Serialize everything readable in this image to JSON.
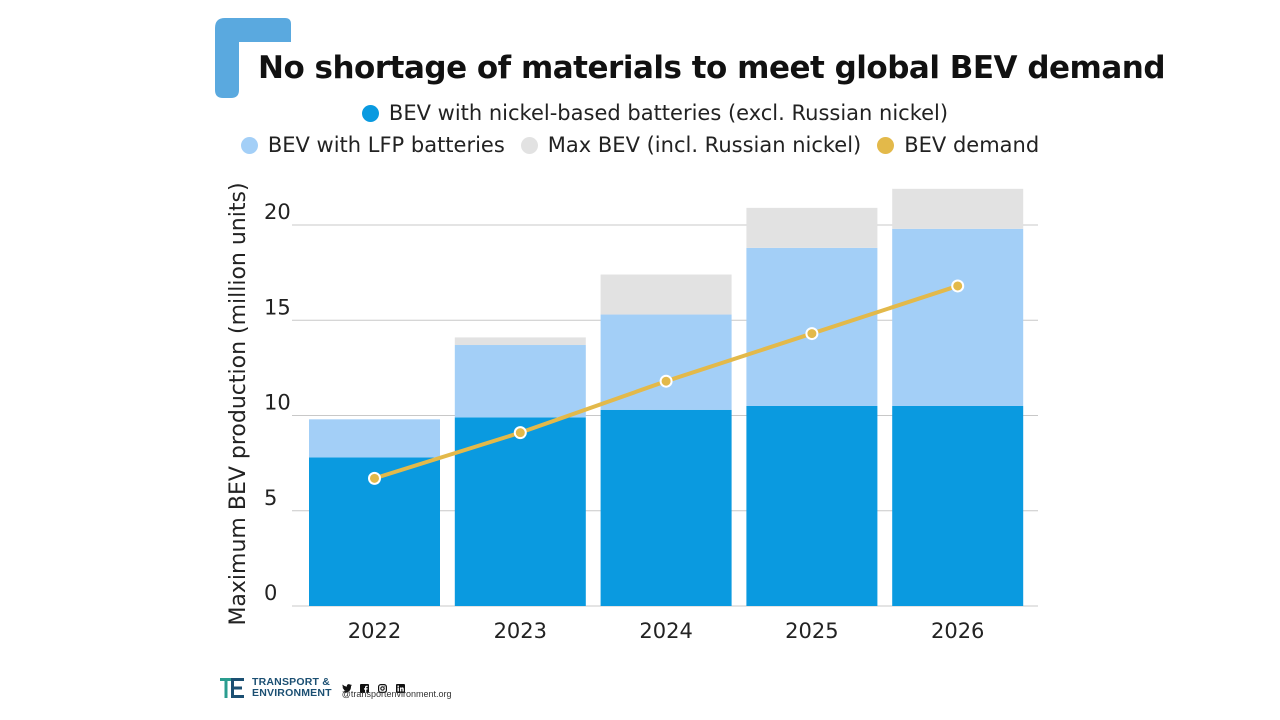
{
  "title": "No shortage of materials to meet global BEV demand",
  "legend": {
    "row1": [
      {
        "label": "BEV with nickel-based batteries (excl. Russian nickel)",
        "color": "#0a9ae0"
      }
    ],
    "row2": [
      {
        "label": "BEV with LFP batteries",
        "color": "#a3cff7"
      },
      {
        "label": "Max BEV (incl. Russian nickel)",
        "color": "#e2e2e2"
      },
      {
        "label": "BEV demand",
        "color": "#e3b94a"
      }
    ]
  },
  "colors": {
    "accent_mark": "#5aa9df",
    "nickel": "#0a9ae0",
    "lfp": "#a3cff7",
    "max": "#e2e2e2",
    "demand": "#e3b94a",
    "grid": "#c8c8c8",
    "logo": "#1b4f72"
  },
  "chart_data": {
    "type": "bar",
    "stacked": true,
    "title": "No shortage of materials to meet global BEV demand",
    "xlabel": "",
    "ylabel": "Maximum BEV production (million units)",
    "ylim": [
      0,
      22
    ],
    "yticks": [
      0,
      5,
      10,
      15,
      20
    ],
    "grid": true,
    "categories": [
      "2022",
      "2023",
      "2024",
      "2025",
      "2026"
    ],
    "series": [
      {
        "name": "BEV with nickel-based batteries (excl. Russian nickel)",
        "kind": "bar",
        "values": [
          7.8,
          9.9,
          10.3,
          10.5,
          10.5
        ]
      },
      {
        "name": "BEV with LFP batteries",
        "kind": "bar",
        "values": [
          2.0,
          3.8,
          5.0,
          8.3,
          9.3
        ]
      },
      {
        "name": "Max BEV (incl. Russian nickel)",
        "kind": "bar",
        "values": [
          0.0,
          0.4,
          2.1,
          2.1,
          2.1
        ]
      },
      {
        "name": "BEV demand",
        "kind": "line",
        "values": [
          6.7,
          9.1,
          11.8,
          14.3,
          16.8
        ]
      }
    ]
  },
  "footer": {
    "logo_line1": "TRANSPORT &",
    "logo_line2": "ENVIRONMENT",
    "handle": "@transportenvironment.org",
    "social_icons": [
      "twitter-icon",
      "facebook-icon",
      "instagram-icon",
      "linkedin-icon"
    ]
  }
}
